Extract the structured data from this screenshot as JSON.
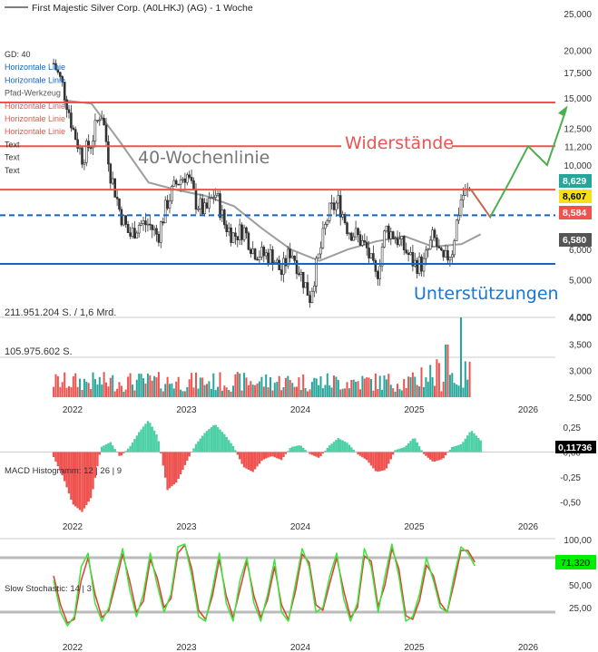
{
  "title": "First Majestic Silver Corp. (A0LHKJ) (AG) - 1 Woche",
  "chart_data": [
    {
      "type": "candlestick",
      "name": "price",
      "scale": "log",
      "ylim": [
        4000,
        25000
      ],
      "y_ticks": [
        {
          "value": 25000,
          "label": "25,000"
        },
        {
          "value": 20000,
          "label": "20,000"
        },
        {
          "value": 17500,
          "label": "17,500"
        },
        {
          "value": 15000,
          "label": "15,000"
        },
        {
          "value": 12500,
          "label": "12,500"
        },
        {
          "value": 11200,
          "label": "11,200"
        },
        {
          "value": 10000,
          "label": "10,000"
        },
        {
          "value": 7500,
          "label": "7,500"
        },
        {
          "value": 6000,
          "label": "6,000"
        },
        {
          "value": 5000,
          "label": "5,000"
        },
        {
          "value": 4000,
          "label": "4,000"
        }
      ],
      "x_ticks": [
        "2022",
        "2023",
        "2024",
        "2025",
        "2026"
      ],
      "legend_items": [
        "GD: 40",
        "Horizontale Linie",
        "Horizontale Linie",
        "Pfad-Werkzeug",
        "Horizontale Linie",
        "Horizontale Linie",
        "Horizontale Linie",
        "Text",
        "Text",
        "Text"
      ],
      "price_path": [
        [
          "2021-11",
          18.5
        ],
        [
          "2021-12",
          16.0
        ],
        [
          "2022-01",
          12.5
        ],
        [
          "2022-02",
          10.5
        ],
        [
          "2022-03",
          11.5
        ],
        [
          "2022-04",
          14.0
        ],
        [
          "2022-05",
          9.5
        ],
        [
          "2022-06",
          7.5
        ],
        [
          "2022-07",
          6.5
        ],
        [
          "2022-08",
          7.0
        ],
        [
          "2022-09",
          7.0
        ],
        [
          "2022-10",
          6.5
        ],
        [
          "2022-11",
          8.0
        ],
        [
          "2022-12",
          9.0
        ],
        [
          "2023-01",
          9.5
        ],
        [
          "2023-02",
          8.0
        ],
        [
          "2023-03",
          7.5
        ],
        [
          "2023-04",
          8.5
        ],
        [
          "2023-05",
          7.0
        ],
        [
          "2023-06",
          6.5
        ],
        [
          "2023-07",
          6.8
        ],
        [
          "2023-08",
          6.0
        ],
        [
          "2023-09",
          5.8
        ],
        [
          "2023-10",
          5.8
        ],
        [
          "2023-11",
          5.2
        ],
        [
          "2023-12",
          6.0
        ],
        [
          "2024-01",
          5.2
        ],
        [
          "2024-02",
          4.5
        ],
        [
          "2024-03",
          5.8
        ],
        [
          "2024-04",
          7.5
        ],
        [
          "2024-05",
          8.0
        ],
        [
          "2024-06",
          6.8
        ],
        [
          "2024-07",
          6.5
        ],
        [
          "2024-08",
          6.0
        ],
        [
          "2024-09",
          5.0
        ],
        [
          "2024-10",
          6.8
        ],
        [
          "2024-11",
          6.5
        ],
        [
          "2024-12",
          6.0
        ],
        [
          "2025-01",
          5.5
        ],
        [
          "2025-02",
          5.5
        ],
        [
          "2025-03",
          6.5
        ],
        [
          "2025-04",
          5.5
        ],
        [
          "2025-05",
          6.0
        ],
        [
          "2025-06",
          8.3
        ],
        [
          "2025-07",
          8.6
        ]
      ],
      "sma40": [
        [
          "2021-12",
          14.8
        ],
        [
          "2022-03",
          14.5
        ],
        [
          "2022-06",
          11.5
        ],
        [
          "2022-09",
          9.0
        ],
        [
          "2022-12",
          8.6
        ],
        [
          "2023-03",
          8.3
        ],
        [
          "2023-06",
          7.8
        ],
        [
          "2023-09",
          6.8
        ],
        [
          "2023-12",
          6.0
        ],
        [
          "2024-03",
          5.6
        ],
        [
          "2024-06",
          6.0
        ],
        [
          "2024-09",
          6.3
        ],
        [
          "2024-12",
          6.5
        ],
        [
          "2025-03",
          6.1
        ],
        [
          "2025-06",
          6.2
        ],
        [
          "2025-08",
          6.58
        ]
      ],
      "horizontal_lines": [
        {
          "value": 14.6,
          "color": "#ef5350"
        },
        {
          "value": 11.2,
          "color": "#ef5350"
        },
        {
          "value": 8.62,
          "color": "#ef5350"
        },
        {
          "value": 7.38,
          "color": "#1565c0",
          "dashed": true
        },
        {
          "value": 5.5,
          "color": "#1565c0"
        }
      ],
      "path_tool": [
        [
          "2025-07",
          8.6
        ],
        [
          "2025-09",
          7.3
        ],
        [
          "2025-11",
          9.0
        ],
        [
          "2026-01",
          11.2
        ],
        [
          "2026-03",
          10.0
        ],
        [
          "2026-05",
          14.0
        ]
      ],
      "annotations": [
        {
          "text": "40-Wochenlinie",
          "color": "#777777"
        },
        {
          "text": "Widerstände",
          "color": "#ef5350"
        },
        {
          "text": "Unterstützungen",
          "color": "#1976d2"
        }
      ],
      "price_badges": [
        {
          "label": "8,629",
          "value": 8.629,
          "bg": "#26a69a",
          "fg": "#ffffff"
        },
        {
          "label": "8,607",
          "value": 8.607,
          "bg": "#f7e017",
          "fg": "#000000"
        },
        {
          "label": "8,584",
          "value": 8.584,
          "bg": "#ef5350",
          "fg": "#ffffff"
        },
        {
          "label": "6,580",
          "value": 6.58,
          "bg": "#555555",
          "fg": "#ffffff"
        }
      ]
    },
    {
      "type": "bar",
      "name": "volume",
      "ylim": [
        2500,
        4000
      ],
      "y_ticks": [
        {
          "value": 4000,
          "label": "4,000"
        },
        {
          "value": 3500,
          "label": "3,500"
        },
        {
          "value": 3000,
          "label": "3,000"
        },
        {
          "value": 2500,
          "label": "2,500"
        }
      ],
      "labels": [
        "211.951.204 S. / 1,6 Mrd.",
        "105.975.602 S."
      ],
      "x_ticks": [
        "2022",
        "2023",
        "2024",
        "2025",
        "2026"
      ]
    },
    {
      "type": "histogram",
      "name": "MACD Histogramm: 12 | 26 | 9",
      "ylim": [
        -0.65,
        0.35
      ],
      "y_ticks": [
        {
          "value": 0.25,
          "label": "0,25"
        },
        {
          "value": 0,
          "label": "0,00"
        },
        {
          "value": -0.25,
          "label": "-0,25"
        },
        {
          "value": -0.5,
          "label": "-0,50"
        }
      ],
      "current_label": "0,11736",
      "series": [
        [
          "2021-11",
          -0.05
        ],
        [
          "2021-12",
          -0.25
        ],
        [
          "2022-01",
          -0.52
        ],
        [
          "2022-02",
          -0.6
        ],
        [
          "2022-03",
          -0.45
        ],
        [
          "2022-04",
          0.05
        ],
        [
          "2022-05",
          0.1
        ],
        [
          "2022-06",
          -0.05
        ],
        [
          "2022-07",
          0.05
        ],
        [
          "2022-08",
          0.2
        ],
        [
          "2022-09",
          0.32
        ],
        [
          "2022-10",
          0.15
        ],
        [
          "2022-11",
          -0.38
        ],
        [
          "2022-12",
          -0.3
        ],
        [
          "2023-01",
          -0.1
        ],
        [
          "2023-02",
          0.08
        ],
        [
          "2023-03",
          0.2
        ],
        [
          "2023-04",
          0.28
        ],
        [
          "2023-05",
          0.18
        ],
        [
          "2023-06",
          0.05
        ],
        [
          "2023-07",
          -0.15
        ],
        [
          "2023-08",
          -0.2
        ],
        [
          "2023-09",
          -0.08
        ],
        [
          "2023-10",
          -0.04
        ],
        [
          "2023-11",
          -0.08
        ],
        [
          "2023-12",
          0.05
        ],
        [
          "2024-01",
          0.07
        ],
        [
          "2024-02",
          -0.02
        ],
        [
          "2024-03",
          -0.06
        ],
        [
          "2024-04",
          0.06
        ],
        [
          "2024-05",
          0.14
        ],
        [
          "2024-06",
          0.09
        ],
        [
          "2024-07",
          -0.02
        ],
        [
          "2024-08",
          -0.08
        ],
        [
          "2024-09",
          -0.2
        ],
        [
          "2024-10",
          -0.18
        ],
        [
          "2024-11",
          0.02
        ],
        [
          "2024-12",
          0.05
        ],
        [
          "2025-01",
          0.15
        ],
        [
          "2025-02",
          -0.02
        ],
        [
          "2025-03",
          -0.1
        ],
        [
          "2025-04",
          -0.07
        ],
        [
          "2025-05",
          0.05
        ],
        [
          "2025-06",
          0.08
        ],
        [
          "2025-07",
          0.22
        ],
        [
          "2025-08",
          0.117
        ]
      ],
      "x_ticks": [
        "2022",
        "2023",
        "2024",
        "2025",
        "2026"
      ]
    },
    {
      "type": "line",
      "name": "Slow Stochastic: 14 | 3",
      "ylim": [
        0,
        100
      ],
      "levels": [
        80,
        20
      ],
      "y_ticks": [
        {
          "value": 100,
          "label": "100,00"
        },
        {
          "value": 75,
          "label": "75,00"
        },
        {
          "value": 50,
          "label": "50,00"
        },
        {
          "value": 25,
          "label": "25,00"
        }
      ],
      "current_label": "71,320",
      "series": [
        {
          "name": "K",
          "color": "#39e639",
          "values": [
            55,
            20,
            5,
            15,
            70,
            85,
            30,
            10,
            25,
            60,
            90,
            45,
            15,
            40,
            85,
            50,
            20,
            40,
            92,
            95,
            60,
            15,
            10,
            45,
            85,
            30,
            10,
            55,
            80,
            30,
            10,
            40,
            78,
            20,
            10,
            50,
            90,
            70,
            20,
            25,
            60,
            85,
            35,
            10,
            30,
            90,
            70,
            20,
            60,
            95,
            60,
            10,
            15,
            40,
            80,
            55,
            25,
            20,
            60,
            92,
            85,
            71
          ]
        },
        {
          "name": "D",
          "color": "#e53935",
          "values": [
            60,
            28,
            8,
            12,
            55,
            80,
            40,
            14,
            22,
            52,
            84,
            55,
            20,
            32,
            78,
            58,
            25,
            35,
            85,
            94,
            68,
            22,
            12,
            38,
            78,
            38,
            14,
            45,
            76,
            38,
            14,
            34,
            70,
            28,
            12,
            42,
            84,
            75,
            28,
            22,
            52,
            80,
            44,
            14,
            25,
            82,
            76,
            26,
            50,
            90,
            68,
            16,
            12,
            33,
            72,
            60,
            30,
            20,
            52,
            88,
            88,
            75
          ]
        }
      ],
      "x_ticks": [
        "2022",
        "2023",
        "2024",
        "2025",
        "2026"
      ]
    }
  ]
}
